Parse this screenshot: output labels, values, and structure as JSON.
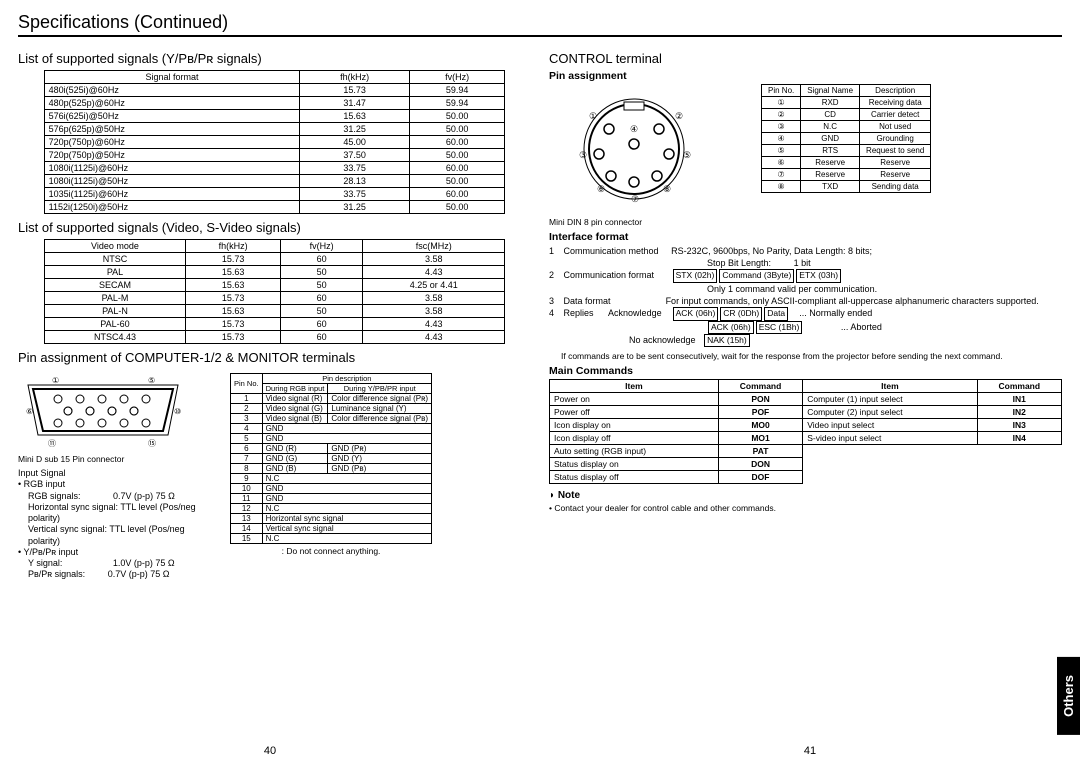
{
  "page_title": "Specifications (Continued)",
  "left_page_num": "40",
  "right_page_num": "41",
  "sidebar_tab": "Others",
  "left": {
    "ypbpr_title": "List of supported signals (Y/Pʙ/Pʀ signals)",
    "ypbpr_headers": [
      "Signal format",
      "fh(kHz)",
      "fv(Hz)"
    ],
    "ypbpr_rows": [
      [
        "480i(525i)@60Hz",
        "15.73",
        "59.94"
      ],
      [
        "480p(525p)@60Hz",
        "31.47",
        "59.94"
      ],
      [
        "576i(625i)@50Hz",
        "15.63",
        "50.00"
      ],
      [
        "576p(625p)@50Hz",
        "31.25",
        "50.00"
      ],
      [
        "720p(750p)@60Hz",
        "45.00",
        "60.00"
      ],
      [
        "720p(750p)@50Hz",
        "37.50",
        "50.00"
      ],
      [
        "1080i(1125i)@60Hz",
        "33.75",
        "60.00"
      ],
      [
        "1080i(1125i)@50Hz",
        "28.13",
        "50.00"
      ],
      [
        "1035i(1125i)@60Hz",
        "33.75",
        "60.00"
      ],
      [
        "1152i(1250i)@50Hz",
        "31.25",
        "50.00"
      ]
    ],
    "video_title": "List of supported signals (Video, S-Video signals)",
    "video_headers": [
      "Video mode",
      "fh(kHz)",
      "fv(Hz)",
      "fsc(MHz)"
    ],
    "video_rows": [
      [
        "NTSC",
        "15.73",
        "60",
        "3.58"
      ],
      [
        "PAL",
        "15.63",
        "50",
        "4.43"
      ],
      [
        "SECAM",
        "15.63",
        "50",
        "4.25 or 4.41"
      ],
      [
        "PAL-M",
        "15.73",
        "60",
        "3.58"
      ],
      [
        "PAL-N",
        "15.63",
        "50",
        "3.58"
      ],
      [
        "PAL-60",
        "15.73",
        "60",
        "4.43"
      ],
      [
        "NTSC4.43",
        "15.73",
        "60",
        "4.43"
      ]
    ],
    "pin_title": "Pin assignment of COMPUTER-1/2 & MONITOR terminals",
    "dsub_caption": "Mini D sub 15 Pin connector",
    "pin_header": [
      "Pin No.",
      "Pin description"
    ],
    "pin_subheader": [
      "During RGB input",
      "During Y/PB/PR input"
    ],
    "pin_rows": [
      [
        "1",
        "Video signal (R)",
        "Color difference signal (Pʀ)"
      ],
      [
        "2",
        "Video signal (G)",
        "Luminance signal (Y)"
      ],
      [
        "3",
        "Video signal (B)",
        "Color difference signal (Pʙ)"
      ],
      [
        "4",
        "GND",
        ""
      ],
      [
        "5",
        "GND",
        ""
      ],
      [
        "6",
        "GND (R)",
        "GND (Pʀ)"
      ],
      [
        "7",
        "GND (G)",
        "GND (Y)"
      ],
      [
        "8",
        "GND (B)",
        "GND (Pʙ)"
      ],
      [
        "9",
        "N.C",
        ""
      ],
      [
        "10",
        "GND",
        ""
      ],
      [
        "11",
        "GND",
        ""
      ],
      [
        "12",
        "N.C",
        ""
      ],
      [
        "13",
        "Horizontal sync signal",
        ""
      ],
      [
        "14",
        "Vertical sync signal",
        ""
      ],
      [
        "15",
        "N.C",
        ""
      ]
    ],
    "pin_footnote": "Do not connect anything.",
    "inputsig_title": "Input Signal",
    "rgb_input": "• RGB input",
    "rgb_sig": "RGB signals:",
    "rgb_sig_val": "0.7V (p-p) 75 Ω",
    "h_sync": "Horizontal sync signal:",
    "h_sync_val": "TTL level (Pos/neg polarity)",
    "v_sync": "Vertical sync signal:",
    "v_sync_val": "TTL level (Pos/neg polarity)",
    "ypbpr_input": "• Y/Pʙ/Pʀ input",
    "y_sig": "Y signal:",
    "y_sig_val": "1.0V (p-p) 75 Ω",
    "pbpr_sig": "Pʙ/Pʀ signals:",
    "pbpr_sig_val": "0.7V (p-p) 75 Ω"
  },
  "right": {
    "control_title": "CONTROL terminal",
    "pinassign_title": "Pin assignment",
    "din_caption": "Mini DIN 8 pin connector",
    "pinassign_rows": [
      [
        "Pin No.",
        "Signal Name",
        "Description"
      ],
      [
        "①",
        "RXD",
        "Receiving data"
      ],
      [
        "②",
        "CD",
        "Carrier detect"
      ],
      [
        "③",
        "N.C",
        "Not used"
      ],
      [
        "④",
        "GND",
        "Grounding"
      ],
      [
        "⑤",
        "RTS",
        "Request to send"
      ],
      [
        "⑥",
        "Reserve",
        "Reserve"
      ],
      [
        "⑦",
        "Reserve",
        "Reserve"
      ],
      [
        "⑧",
        "TXD",
        "Sending data"
      ]
    ],
    "iface_title": "Interface format",
    "iface_1_l": "Communication method",
    "iface_1_r": "RS-232C, 9600bps, No Parity, Data Length: 8 bits;",
    "iface_1b_l": "Stop Bit Length:",
    "iface_1b_r": "1 bit",
    "iface_2_l": "Communication format",
    "iface_2_box1": "STX (02h)",
    "iface_2_box2": "Command (3Byte)",
    "iface_2_box3": "ETX (03h)",
    "iface_2_r2": "Only 1 command valid per communication.",
    "iface_3_l": "Data format",
    "iface_3_r": "For input commands, only ASCII-compliant all-uppercase alphanumeric characters supported.",
    "iface_4_l": "Replies",
    "iface_4_ack": "Acknowledge",
    "iface_4_box1": "ACK (06h)",
    "iface_4_box2": "CR (0Dh)",
    "iface_4_box3": "Data",
    "iface_4_r": "... Normally ended",
    "iface_4b_box1": "ACK (06h)",
    "iface_4b_box2": "ESC (1Bh)",
    "iface_4b_r": "... Aborted",
    "iface_4c_l": "No acknowledge",
    "iface_4c_box": "NAK (15h)",
    "cmd_note": "If commands are to be sent consecutively, wait for the response from the projector before sending the next command.",
    "main_cmd_title": "Main Commands",
    "cmd_headers": [
      "Item",
      "Command",
      "Item",
      "Command"
    ],
    "cmd_rows": [
      [
        "Power on",
        "PON",
        "Computer (1) input select",
        "IN1"
      ],
      [
        "Power off",
        "POF",
        "Computer (2) input select",
        "IN2"
      ],
      [
        "Icon display on",
        "MO0",
        "Video input select",
        "IN3"
      ],
      [
        "Icon display off",
        "MO1",
        "S-video input select",
        "IN4"
      ],
      [
        "Auto setting (RGB input)",
        "PAT",
        "",
        ""
      ],
      [
        "Status display on",
        "DON",
        "",
        ""
      ],
      [
        "Status display off",
        "DOF",
        "",
        ""
      ]
    ],
    "note_title": "Note",
    "note_text": "• Contact your dealer for control cable and other commands."
  }
}
